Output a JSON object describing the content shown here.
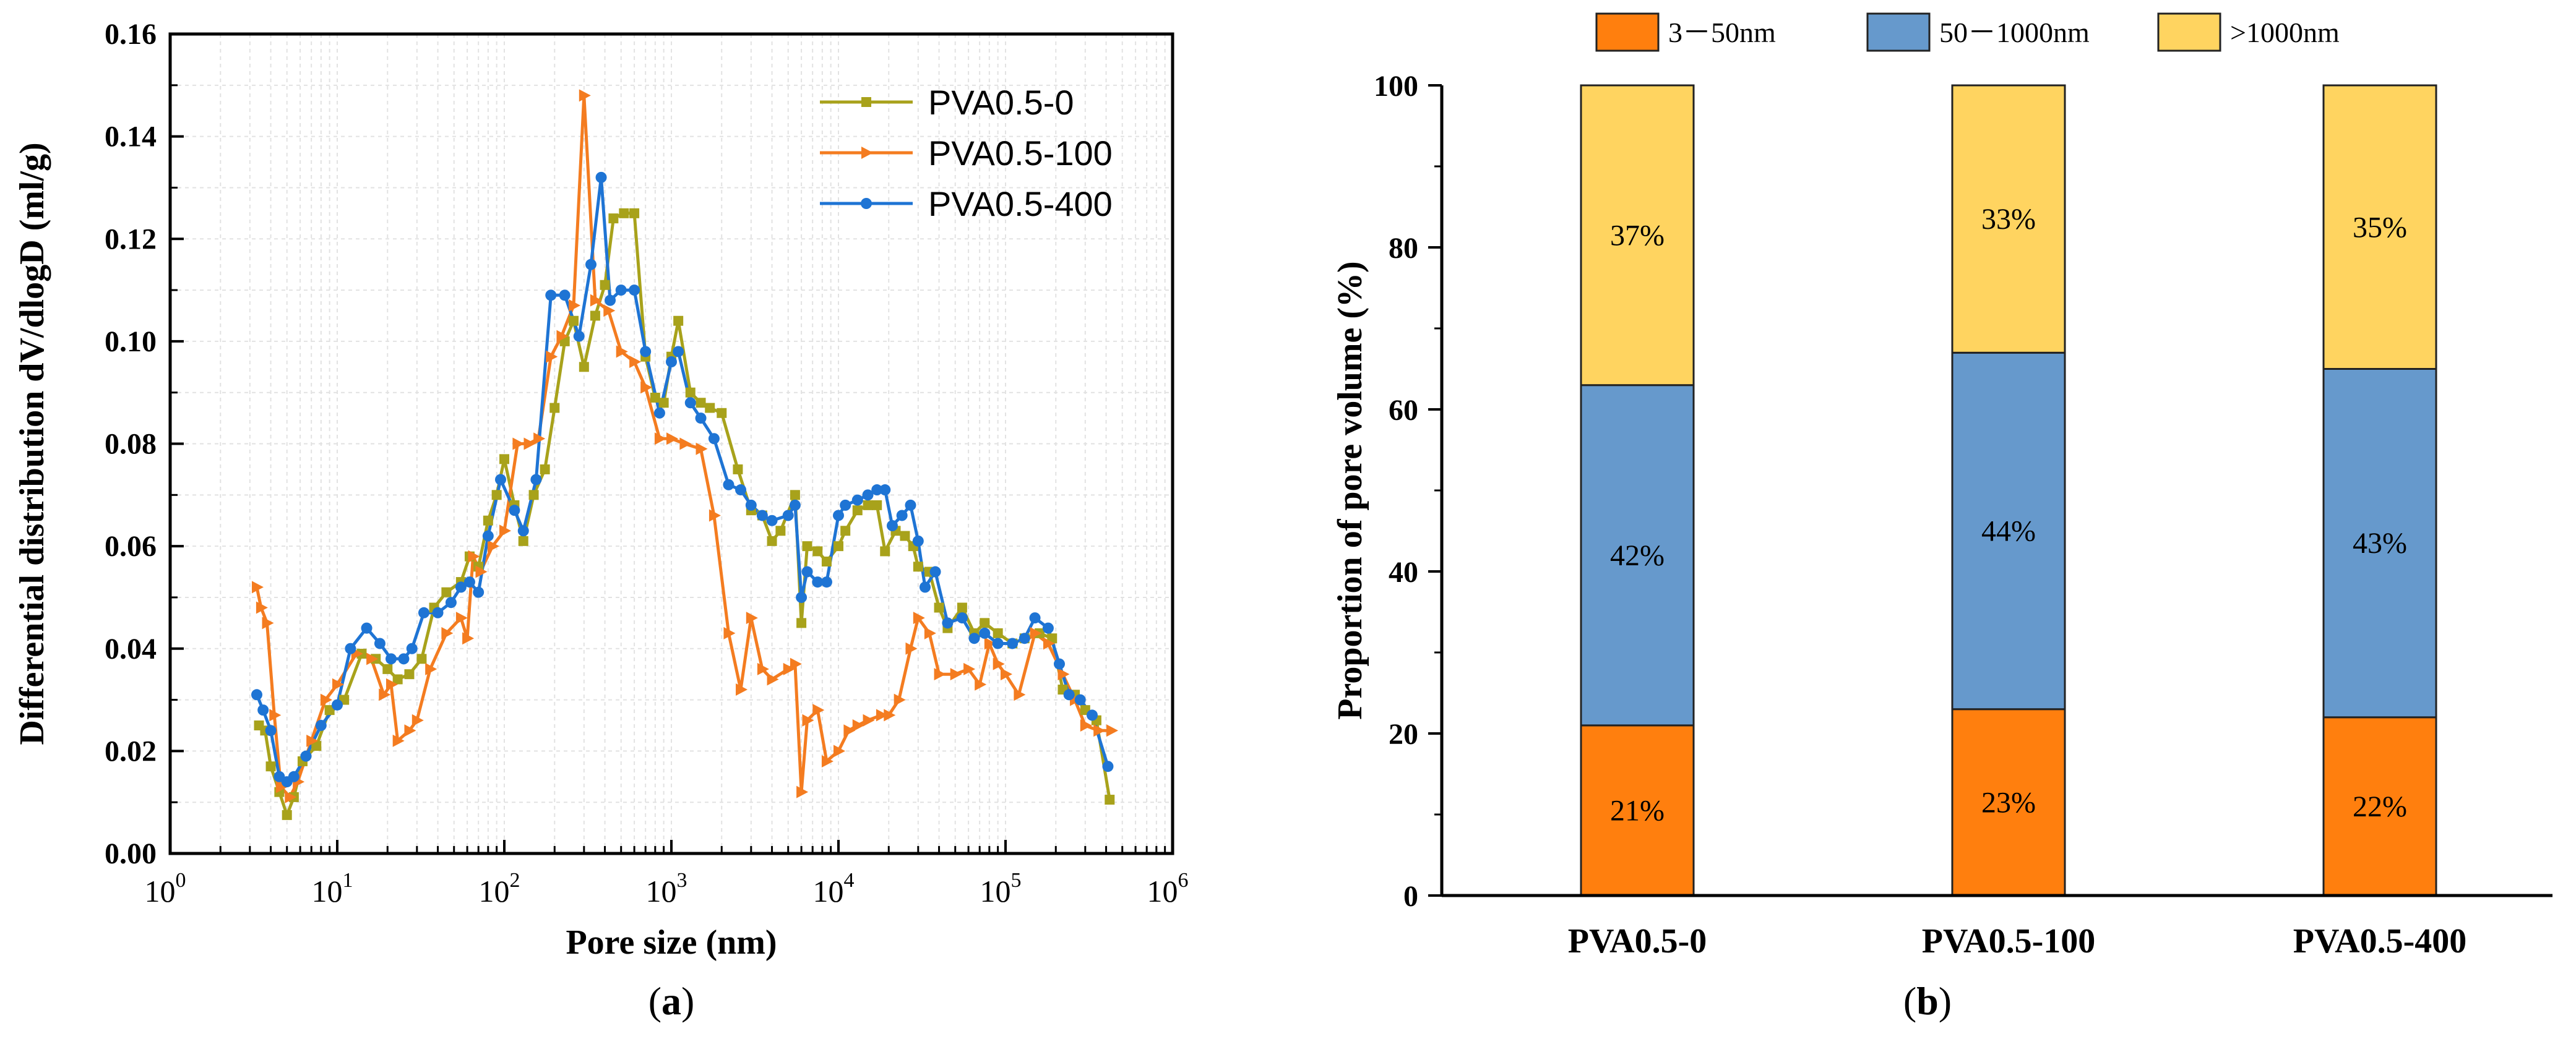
{
  "chart_data": [
    {
      "type": "line",
      "panel_label": "a",
      "xlabel": "Pore size (nm)",
      "ylabel": "Differential distribution dV/dlogD (ml/g)",
      "xscale": "log",
      "xlim": [
        1,
        1000000
      ],
      "ylim": [
        0,
        0.16
      ],
      "grid": true,
      "legend_position": "top-right",
      "x_ticks": [
        {
          "base": "10",
          "exp": "0",
          "value": 1
        },
        {
          "base": "10",
          "exp": "1",
          "value": 10
        },
        {
          "base": "10",
          "exp": "2",
          "value": 100
        },
        {
          "base": "10",
          "exp": "3",
          "value": 1000
        },
        {
          "base": "10",
          "exp": "4",
          "value": 10000
        },
        {
          "base": "10",
          "exp": "5",
          "value": 100000
        },
        {
          "base": "10",
          "exp": "6",
          "value": 1000000
        }
      ],
      "y_ticks": [
        {
          "label": "0.00",
          "value": 0
        },
        {
          "label": "0.02",
          "value": 0.02
        },
        {
          "label": "0.04",
          "value": 0.04
        },
        {
          "label": "0.06",
          "value": 0.06
        },
        {
          "label": "0.08",
          "value": 0.08
        },
        {
          "label": "0.10",
          "value": 0.1
        },
        {
          "label": "0.12",
          "value": 0.12
        },
        {
          "label": "0.14",
          "value": 0.14
        },
        {
          "label": "0.16",
          "value": 0.16
        }
      ],
      "series": [
        {
          "name": "PVA0.5-0",
          "color": "#a8a21b",
          "marker": "square",
          "points": [
            [
              3.4,
              0.025
            ],
            [
              3.7,
              0.024
            ],
            [
              4.0,
              0.017
            ],
            [
              4.5,
              0.012
            ],
            [
              5.0,
              0.0075
            ],
            [
              5.5,
              0.011
            ],
            [
              6.2,
              0.018
            ],
            [
              7.5,
              0.021
            ],
            [
              9,
              0.028
            ],
            [
              11,
              0.03
            ],
            [
              14,
              0.039
            ],
            [
              17,
              0.038
            ],
            [
              20,
              0.036
            ],
            [
              23,
              0.034
            ],
            [
              27,
              0.035
            ],
            [
              32,
              0.038
            ],
            [
              38,
              0.048
            ],
            [
              45,
              0.051
            ],
            [
              55,
              0.053
            ],
            [
              62,
              0.058
            ],
            [
              70,
              0.056
            ],
            [
              80,
              0.065
            ],
            [
              90,
              0.07
            ],
            [
              100,
              0.077
            ],
            [
              115,
              0.068
            ],
            [
              130,
              0.061
            ],
            [
              150,
              0.07
            ],
            [
              175,
              0.075
            ],
            [
              200,
              0.087
            ],
            [
              230,
              0.1
            ],
            [
              260,
              0.104
            ],
            [
              300,
              0.095
            ],
            [
              350,
              0.105
            ],
            [
              400,
              0.111
            ],
            [
              450,
              0.124
            ],
            [
              520,
              0.125
            ],
            [
              600,
              0.125
            ],
            [
              700,
              0.097
            ],
            [
              800,
              0.089
            ],
            [
              900,
              0.088
            ],
            [
              1000,
              0.097
            ],
            [
              1100,
              0.104
            ],
            [
              1300,
              0.09
            ],
            [
              1500,
              0.088
            ],
            [
              1700,
              0.087
            ],
            [
              2000,
              0.086
            ],
            [
              2500,
              0.075
            ],
            [
              3000,
              0.067
            ],
            [
              3500,
              0.066
            ],
            [
              4000,
              0.061
            ],
            [
              4500,
              0.063
            ],
            [
              5500,
              0.07
            ],
            [
              6000,
              0.045
            ],
            [
              6500,
              0.06
            ],
            [
              7500,
              0.059
            ],
            [
              8500,
              0.057
            ],
            [
              10000,
              0.06
            ],
            [
              11000,
              0.063
            ],
            [
              13000,
              0.067
            ],
            [
              15000,
              0.068
            ],
            [
              17000,
              0.068
            ],
            [
              19000,
              0.059
            ],
            [
              22000,
              0.063
            ],
            [
              25000,
              0.062
            ],
            [
              28000,
              0.06
            ],
            [
              30000,
              0.056
            ],
            [
              35000,
              0.055
            ],
            [
              40000,
              0.048
            ],
            [
              45000,
              0.044
            ],
            [
              55000,
              0.048
            ],
            [
              65000,
              0.043
            ],
            [
              75000,
              0.045
            ],
            [
              90000,
              0.043
            ],
            [
              110000,
              0.041
            ],
            [
              130000,
              0.042
            ],
            [
              160000,
              0.043
            ],
            [
              190000,
              0.042
            ],
            [
              220000,
              0.032
            ],
            [
              260000,
              0.031
            ],
            [
              300000,
              0.028
            ],
            [
              350000,
              0.026
            ],
            [
              420000,
              0.0105
            ]
          ]
        },
        {
          "name": "PVA0.5-100",
          "color": "#f47c20",
          "marker": "triangle-right",
          "points": [
            [
              3.3,
              0.052
            ],
            [
              3.5,
              0.048
            ],
            [
              3.8,
              0.045
            ],
            [
              4.2,
              0.027
            ],
            [
              4.6,
              0.013
            ],
            [
              5.2,
              0.011
            ],
            [
              5.8,
              0.014
            ],
            [
              7,
              0.022
            ],
            [
              8.5,
              0.03
            ],
            [
              10,
              0.033
            ],
            [
              13,
              0.039
            ],
            [
              16,
              0.038
            ],
            [
              19,
              0.031
            ],
            [
              21,
              0.033
            ],
            [
              23,
              0.022
            ],
            [
              27,
              0.024
            ],
            [
              30,
              0.026
            ],
            [
              36,
              0.036
            ],
            [
              45,
              0.043
            ],
            [
              55,
              0.046
            ],
            [
              60,
              0.042
            ],
            [
              65,
              0.058
            ],
            [
              72,
              0.055
            ],
            [
              85,
              0.06
            ],
            [
              100,
              0.063
            ],
            [
              120,
              0.08
            ],
            [
              140,
              0.08
            ],
            [
              160,
              0.081
            ],
            [
              190,
              0.097
            ],
            [
              220,
              0.101
            ],
            [
              260,
              0.107
            ],
            [
              300,
              0.148
            ],
            [
              350,
              0.108
            ],
            [
              420,
              0.106
            ],
            [
              500,
              0.098
            ],
            [
              600,
              0.096
            ],
            [
              700,
              0.091
            ],
            [
              850,
              0.081
            ],
            [
              1000,
              0.081
            ],
            [
              1200,
              0.08
            ],
            [
              1500,
              0.079
            ],
            [
              1800,
              0.066
            ],
            [
              2200,
              0.043
            ],
            [
              2600,
              0.032
            ],
            [
              3000,
              0.046
            ],
            [
              3500,
              0.036
            ],
            [
              4000,
              0.034
            ],
            [
              5000,
              0.036
            ],
            [
              5500,
              0.037
            ],
            [
              6000,
              0.012
            ],
            [
              6500,
              0.026
            ],
            [
              7500,
              0.028
            ],
            [
              8500,
              0.018
            ],
            [
              10000,
              0.02
            ],
            [
              11500,
              0.024
            ],
            [
              13000,
              0.025
            ],
            [
              15000,
              0.026
            ],
            [
              18000,
              0.027
            ],
            [
              20000,
              0.027
            ],
            [
              23000,
              0.03
            ],
            [
              27000,
              0.04
            ],
            [
              30000,
              0.046
            ],
            [
              35000,
              0.043
            ],
            [
              40000,
              0.035
            ],
            [
              50000,
              0.035
            ],
            [
              60000,
              0.036
            ],
            [
              70000,
              0.033
            ],
            [
              80000,
              0.041
            ],
            [
              90000,
              0.037
            ],
            [
              100000,
              0.035
            ],
            [
              120000,
              0.031
            ],
            [
              150000,
              0.043
            ],
            [
              180000,
              0.041
            ],
            [
              220000,
              0.035
            ],
            [
              260000,
              0.03
            ],
            [
              300000,
              0.025
            ],
            [
              360000,
              0.024
            ],
            [
              430000,
              0.024
            ]
          ]
        },
        {
          "name": "PVA0.5-400",
          "color": "#1e74d4",
          "marker": "circle",
          "points": [
            [
              3.3,
              0.031
            ],
            [
              3.6,
              0.028
            ],
            [
              4.0,
              0.024
            ],
            [
              4.5,
              0.015
            ],
            [
              5.0,
              0.014
            ],
            [
              5.5,
              0.015
            ],
            [
              6.5,
              0.019
            ],
            [
              8,
              0.025
            ],
            [
              10,
              0.029
            ],
            [
              12,
              0.04
            ],
            [
              15,
              0.044
            ],
            [
              18,
              0.041
            ],
            [
              21,
              0.038
            ],
            [
              25,
              0.038
            ],
            [
              28,
              0.04
            ],
            [
              33,
              0.047
            ],
            [
              40,
              0.047
            ],
            [
              48,
              0.049
            ],
            [
              55,
              0.052
            ],
            [
              62,
              0.053
            ],
            [
              70,
              0.051
            ],
            [
              80,
              0.062
            ],
            [
              95,
              0.073
            ],
            [
              115,
              0.067
            ],
            [
              130,
              0.063
            ],
            [
              155,
              0.073
            ],
            [
              190,
              0.109
            ],
            [
              230,
              0.109
            ],
            [
              280,
              0.101
            ],
            [
              330,
              0.115
            ],
            [
              380,
              0.132
            ],
            [
              430,
              0.108
            ],
            [
              500,
              0.11
            ],
            [
              600,
              0.11
            ],
            [
              700,
              0.098
            ],
            [
              850,
              0.086
            ],
            [
              1000,
              0.096
            ],
            [
              1100,
              0.098
            ],
            [
              1300,
              0.088
            ],
            [
              1500,
              0.085
            ],
            [
              1800,
              0.081
            ],
            [
              2200,
              0.072
            ],
            [
              2600,
              0.071
            ],
            [
              3000,
              0.068
            ],
            [
              3500,
              0.066
            ],
            [
              4000,
              0.065
            ],
            [
              5000,
              0.066
            ],
            [
              5500,
              0.068
            ],
            [
              6000,
              0.05
            ],
            [
              6500,
              0.055
            ],
            [
              7500,
              0.053
            ],
            [
              8500,
              0.053
            ],
            [
              10000,
              0.066
            ],
            [
              11000,
              0.068
            ],
            [
              13000,
              0.069
            ],
            [
              15000,
              0.07
            ],
            [
              17000,
              0.071
            ],
            [
              19000,
              0.071
            ],
            [
              21000,
              0.064
            ],
            [
              24000,
              0.066
            ],
            [
              27000,
              0.068
            ],
            [
              30000,
              0.061
            ],
            [
              33000,
              0.052
            ],
            [
              38000,
              0.055
            ],
            [
              45000,
              0.045
            ],
            [
              55000,
              0.046
            ],
            [
              65000,
              0.042
            ],
            [
              75000,
              0.043
            ],
            [
              90000,
              0.041
            ],
            [
              110000,
              0.041
            ],
            [
              130000,
              0.042
            ],
            [
              150000,
              0.046
            ],
            [
              180000,
              0.044
            ],
            [
              210000,
              0.037
            ],
            [
              240000,
              0.031
            ],
            [
              280000,
              0.03
            ],
            [
              330000,
              0.027
            ],
            [
              410000,
              0.017
            ]
          ]
        }
      ]
    },
    {
      "type": "bar",
      "stacked": true,
      "panel_label": "b",
      "categories": [
        "PVA0.5-0",
        "PVA0.5-100",
        "PVA0.5-400"
      ],
      "ylabel": "Proportion of pore volume (%)",
      "xlabel": "",
      "ylim": [
        0,
        100
      ],
      "y_ticks": [
        0,
        20,
        40,
        60,
        80,
        100
      ],
      "legend_position": "top",
      "series": [
        {
          "name": "3－50nm",
          "color": "#ff7f0e",
          "values": [
            21,
            23,
            22
          ],
          "labels": [
            "21%",
            "23%",
            "22%"
          ]
        },
        {
          "name": "50－1000nm",
          "color": "#6699cc",
          "values": [
            42,
            44,
            43
          ],
          "labels": [
            "42%",
            "44%",
            "43%"
          ]
        },
        {
          "name": ">1000nm",
          "color": "#ffd460",
          "values": [
            37,
            33,
            35
          ],
          "labels": [
            "37%",
            "33%",
            "35%"
          ]
        }
      ]
    }
  ]
}
